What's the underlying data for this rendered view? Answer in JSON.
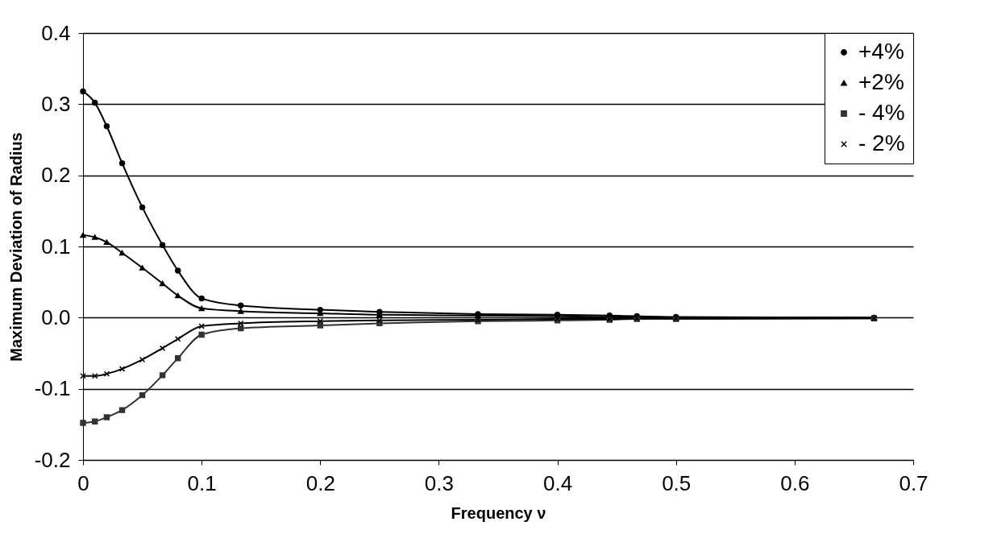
{
  "chart_data": {
    "type": "line",
    "xlabel": "Frequency ν",
    "ylabel": "Maximum Deviation of Radius",
    "x": [
      0,
      0.01,
      0.02,
      0.033,
      0.05,
      0.067,
      0.08,
      0.1,
      0.133,
      0.2,
      0.25,
      0.333,
      0.4,
      0.444,
      0.467,
      0.5,
      0.667
    ],
    "series": [
      {
        "name": "+4%",
        "color": "#000000",
        "marker": "circle",
        "values": [
          0.318,
          0.302,
          0.269,
          0.217,
          0.155,
          0.102,
          0.066,
          0.027,
          0.017,
          0.011,
          0.008,
          0.005,
          0.004,
          0.003,
          0.002,
          0.001,
          0
        ]
      },
      {
        "name": "+2%",
        "color": "#000000",
        "marker": "triangle",
        "values": [
          0.116,
          0.113,
          0.106,
          0.091,
          0.07,
          0.048,
          0.031,
          0.013,
          0.009,
          0.006,
          0.004,
          0.003,
          0.002,
          0.001,
          0.001,
          0,
          0
        ]
      },
      {
        "name": "- 4%",
        "color": "#333333",
        "marker": "square",
        "values": [
          -0.148,
          -0.146,
          -0.14,
          -0.13,
          -0.109,
          -0.081,
          -0.057,
          -0.024,
          -0.015,
          -0.011,
          -0.008,
          -0.005,
          -0.004,
          -0.003,
          -0.002,
          -0.002,
          -0.001
        ]
      },
      {
        "name": "- 2%",
        "color": "#000000",
        "marker": "cross",
        "values": [
          -0.082,
          -0.082,
          -0.079,
          -0.072,
          -0.059,
          -0.043,
          -0.03,
          -0.012,
          -0.008,
          -0.005,
          -0.004,
          -0.003,
          -0.002,
          -0.002,
          -0.001,
          -0.001,
          -0.001
        ]
      }
    ],
    "xlim": [
      0,
      0.7
    ],
    "xticks": [
      0,
      0.1,
      0.2,
      0.3,
      0.4,
      0.5,
      0.6,
      0.7
    ],
    "ylim": [
      -0.2,
      0.4
    ],
    "yticks": [
      -0.2,
      -0.1,
      {
        "value": 0,
        "label": "0.0"
      },
      0.1,
      0.2,
      0.3,
      0.4
    ],
    "grid": "y",
    "legend": "top right",
    "line_style": "solid"
  }
}
